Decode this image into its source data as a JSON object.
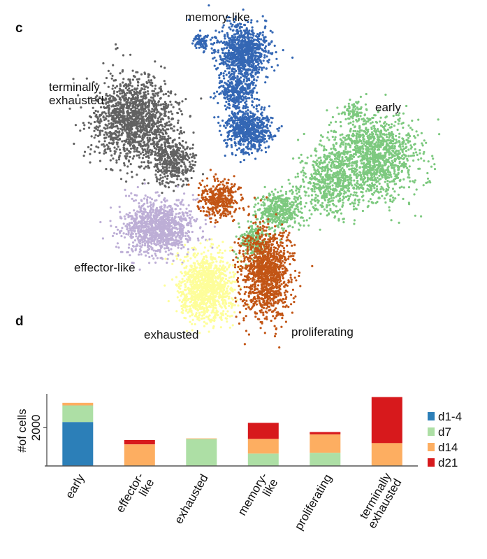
{
  "panels": {
    "c": "c",
    "d": "d"
  },
  "umap": {
    "clusters": [
      {
        "key": "memory-like",
        "label": "memory-like",
        "color": "#3467b4"
      },
      {
        "key": "terminally-exhausted",
        "label_lines": [
          "terminally",
          "exhausted"
        ],
        "color": "#626262"
      },
      {
        "key": "early",
        "label": "early",
        "color": "#7dc97f"
      },
      {
        "key": "effector-like",
        "label": "effector-like",
        "color": "#bdaed6"
      },
      {
        "key": "exhausted",
        "label": "exhausted",
        "color": "#fefe9a"
      },
      {
        "key": "proliferating",
        "label": "proliferating",
        "color": "#c25515"
      }
    ]
  },
  "chart_data": {
    "type": "bar",
    "stacked": true,
    "title": "",
    "xlabel": "",
    "ylabel": "#of cells",
    "yticks": [
      2000
    ],
    "ylim": [
      0,
      3700
    ],
    "categories": [
      [
        "early"
      ],
      [
        "effector-",
        "like"
      ],
      [
        "exhausted"
      ],
      [
        "memory-",
        "like"
      ],
      [
        "proliferating"
      ],
      [
        "terminally",
        "exhausted"
      ]
    ],
    "series": [
      {
        "name": "d1-4",
        "color": "#2c7fb8",
        "values": [
          2300,
          0,
          0,
          0,
          0,
          0
        ]
      },
      {
        "name": "d7",
        "color": "#addfa5",
        "values": [
          870,
          0,
          1415,
          650,
          690,
          0
        ]
      },
      {
        "name": "d14",
        "color": "#fdae61",
        "values": [
          135,
          1130,
          30,
          765,
          965,
          1200
        ]
      },
      {
        "name": "d21",
        "color": "#d7191c",
        "values": [
          0,
          225,
          0,
          840,
          120,
          2410
        ]
      }
    ],
    "legend": {
      "position": "right"
    },
    "grid": false
  }
}
